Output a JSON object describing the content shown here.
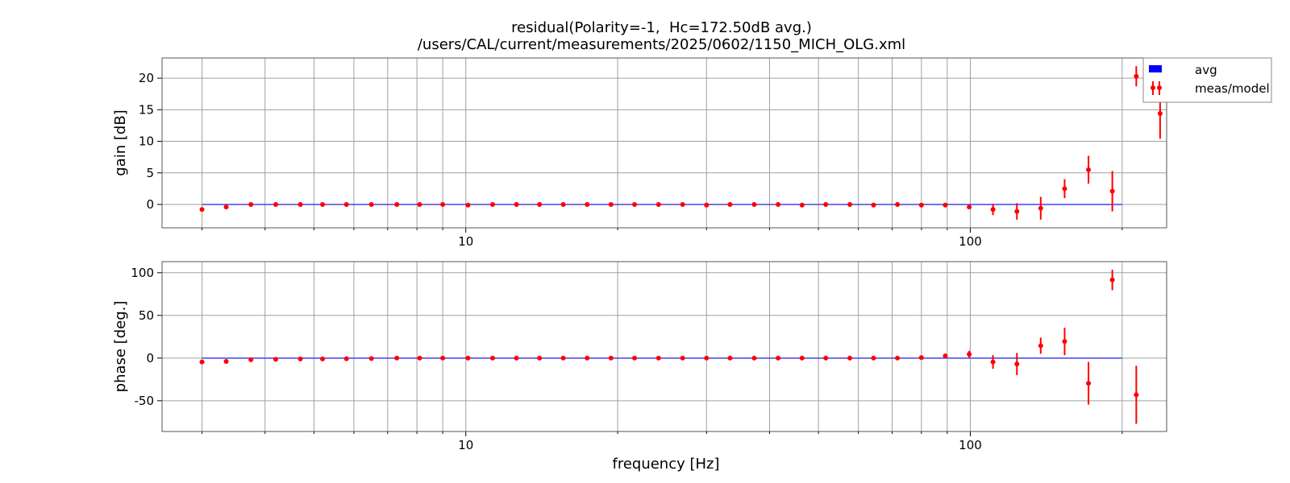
{
  "title_line1": "residual(Polarity=-1,  Hc=172.50dB avg.)",
  "title_line2": "/users/CAL/current/measurements/2025/0602/1150_MICH_OLG.xml",
  "colors": {
    "avg_line": "#4444ee",
    "legend_avg": "#0000ff",
    "meas": "#ff0000",
    "grid": "#a0a0a0",
    "frame": "#555555"
  },
  "chart_data": [
    {
      "type": "scatter",
      "panel": "gain",
      "xlabel": "frequency [Hz]",
      "ylabel": "gain [dB]",
      "xscale": "log",
      "xlim": [
        2.5,
        245
      ],
      "ylim": [
        -3.7,
        23.2
      ],
      "xticks": [
        {
          "value": 10,
          "label": "10"
        },
        {
          "value": 100,
          "label": "100"
        }
      ],
      "yticks": [
        0,
        5,
        10,
        15,
        20
      ],
      "grid": true,
      "legend": {
        "placement": "outside-top-right",
        "entries": [
          "avg",
          "meas/model"
        ]
      },
      "series": [
        {
          "name": "avg",
          "kind": "line",
          "x": [
            3,
            200
          ],
          "y": [
            0,
            0
          ]
        },
        {
          "name": "meas/model",
          "kind": "errorbar",
          "points": [
            {
              "x": 3.0,
              "y": -0.8,
              "err": 0
            },
            {
              "x": 3.35,
              "y": -0.4,
              "err": 0
            },
            {
              "x": 3.75,
              "y": 0.0,
              "err": 0
            },
            {
              "x": 4.2,
              "y": 0.0,
              "err": 0
            },
            {
              "x": 4.7,
              "y": 0.0,
              "err": 0
            },
            {
              "x": 5.2,
              "y": 0.0,
              "err": 0
            },
            {
              "x": 5.8,
              "y": 0.0,
              "err": 0
            },
            {
              "x": 6.5,
              "y": 0.0,
              "err": 0
            },
            {
              "x": 7.3,
              "y": 0.0,
              "err": 0
            },
            {
              "x": 8.1,
              "y": 0.0,
              "err": 0
            },
            {
              "x": 9.0,
              "y": 0.0,
              "err": 0
            },
            {
              "x": 10.1,
              "y": -0.1,
              "err": 0
            },
            {
              "x": 11.3,
              "y": 0.0,
              "err": 0
            },
            {
              "x": 12.6,
              "y": 0.0,
              "err": 0
            },
            {
              "x": 14.0,
              "y": 0.0,
              "err": 0
            },
            {
              "x": 15.6,
              "y": 0.0,
              "err": 0
            },
            {
              "x": 17.4,
              "y": 0.0,
              "err": 0
            },
            {
              "x": 19.4,
              "y": 0.0,
              "err": 0
            },
            {
              "x": 21.6,
              "y": 0.0,
              "err": 0
            },
            {
              "x": 24.1,
              "y": 0.0,
              "err": 0
            },
            {
              "x": 26.9,
              "y": 0.0,
              "err": 0
            },
            {
              "x": 30.0,
              "y": -0.1,
              "err": 0
            },
            {
              "x": 33.4,
              "y": 0.0,
              "err": 0
            },
            {
              "x": 37.3,
              "y": 0.0,
              "err": 0
            },
            {
              "x": 41.6,
              "y": 0.0,
              "err": 0
            },
            {
              "x": 46.4,
              "y": -0.1,
              "err": 0
            },
            {
              "x": 51.7,
              "y": 0.0,
              "err": 0
            },
            {
              "x": 57.7,
              "y": 0.0,
              "err": 0
            },
            {
              "x": 64.3,
              "y": -0.1,
              "err": 0
            },
            {
              "x": 71.7,
              "y": 0.0,
              "err": 0
            },
            {
              "x": 80.0,
              "y": -0.1,
              "err": 0
            },
            {
              "x": 89.2,
              "y": -0.1,
              "err": 0
            },
            {
              "x": 99.5,
              "y": -0.4,
              "err": 0
            },
            {
              "x": 110.9,
              "y": -0.8,
              "err": 0.9
            },
            {
              "x": 123.7,
              "y": -1.1,
              "err": 1.3
            },
            {
              "x": 137.9,
              "y": -0.6,
              "err": 1.8
            },
            {
              "x": 153.8,
              "y": 2.5,
              "err": 1.5
            },
            {
              "x": 171.5,
              "y": 5.5,
              "err": 2.2
            },
            {
              "x": 191.2,
              "y": 2.1,
              "err": 3.2
            },
            {
              "x": 213.3,
              "y": 20.3,
              "err": 1.6
            },
            {
              "x": 237.8,
              "y": 14.4,
              "err": 4.0
            }
          ]
        }
      ]
    },
    {
      "type": "scatter",
      "panel": "phase",
      "xlabel": "frequency [Hz]",
      "ylabel": "phase [deg.]",
      "xscale": "log",
      "xlim": [
        2.5,
        245
      ],
      "ylim": [
        -86,
        113
      ],
      "xticks": [
        {
          "value": 10,
          "label": "10"
        },
        {
          "value": 100,
          "label": "100"
        }
      ],
      "yticks": [
        -50,
        0,
        50,
        100
      ],
      "grid": true,
      "series": [
        {
          "name": "avg",
          "kind": "line",
          "x": [
            3,
            200
          ],
          "y": [
            0,
            0
          ]
        },
        {
          "name": "meas/model",
          "kind": "errorbar",
          "points": [
            {
              "x": 3.0,
              "y": -4.5,
              "err": 0
            },
            {
              "x": 3.35,
              "y": -4.0,
              "err": 0
            },
            {
              "x": 3.75,
              "y": -2.0,
              "err": 0
            },
            {
              "x": 4.2,
              "y": -1.5,
              "err": 0
            },
            {
              "x": 4.7,
              "y": -1.0,
              "err": 0
            },
            {
              "x": 5.2,
              "y": -1.0,
              "err": 0
            },
            {
              "x": 5.8,
              "y": -0.8,
              "err": 0
            },
            {
              "x": 6.5,
              "y": -0.5,
              "err": 0
            },
            {
              "x": 7.3,
              "y": 0.0,
              "err": 0
            },
            {
              "x": 8.1,
              "y": 0.0,
              "err": 0
            },
            {
              "x": 9.0,
              "y": 0.0,
              "err": 0
            },
            {
              "x": 10.1,
              "y": 0.0,
              "err": 0
            },
            {
              "x": 11.3,
              "y": 0.0,
              "err": 0
            },
            {
              "x": 12.6,
              "y": 0.0,
              "err": 0
            },
            {
              "x": 14.0,
              "y": 0.0,
              "err": 0
            },
            {
              "x": 15.6,
              "y": 0.0,
              "err": 0
            },
            {
              "x": 17.4,
              "y": 0.0,
              "err": 0
            },
            {
              "x": 19.4,
              "y": 0.0,
              "err": 0
            },
            {
              "x": 21.6,
              "y": 0.0,
              "err": 0
            },
            {
              "x": 24.1,
              "y": 0.0,
              "err": 0
            },
            {
              "x": 26.9,
              "y": 0.0,
              "err": 0
            },
            {
              "x": 30.0,
              "y": 0.0,
              "err": 0
            },
            {
              "x": 33.4,
              "y": 0.0,
              "err": 0
            },
            {
              "x": 37.3,
              "y": 0.0,
              "err": 0
            },
            {
              "x": 41.6,
              "y": 0.0,
              "err": 0
            },
            {
              "x": 46.4,
              "y": 0.0,
              "err": 0
            },
            {
              "x": 51.7,
              "y": 0.0,
              "err": 0
            },
            {
              "x": 57.7,
              "y": 0.0,
              "err": 0
            },
            {
              "x": 64.3,
              "y": 0.0,
              "err": 0
            },
            {
              "x": 71.7,
              "y": 0.0,
              "err": 0
            },
            {
              "x": 80.0,
              "y": 0.5,
              "err": 0
            },
            {
              "x": 89.2,
              "y": 2.5,
              "err": 0
            },
            {
              "x": 99.5,
              "y": 4.5,
              "err": 4.0
            },
            {
              "x": 110.9,
              "y": -4.5,
              "err": 8.0
            },
            {
              "x": 123.7,
              "y": -7.0,
              "err": 13.0
            },
            {
              "x": 137.9,
              "y": 14.5,
              "err": 9.5
            },
            {
              "x": 153.8,
              "y": 19.5,
              "err": 16.0
            },
            {
              "x": 171.5,
              "y": -29.5,
              "err": 25.0
            },
            {
              "x": 191.2,
              "y": 91.5,
              "err": 12.0
            },
            {
              "x": 213.3,
              "y": -43.0,
              "err": 34.0
            }
          ]
        }
      ]
    }
  ]
}
